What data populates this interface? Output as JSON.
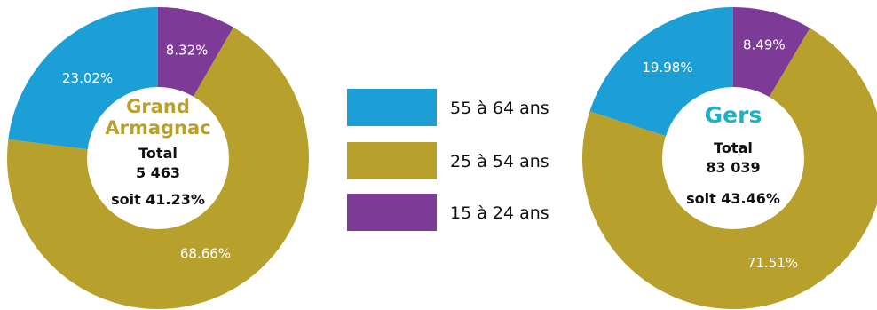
{
  "colors": {
    "age_55_64": "#1b9fd6",
    "age_25_54": "#b8a02c",
    "age_15_24": "#7e3a97",
    "title_grand_armagnac": "#b8a02c",
    "title_gers": "#1bb1c7"
  },
  "legend": [
    {
      "label": "55 à 64 ans",
      "color": "#1b9fd6"
    },
    {
      "label": "25 à 54 ans",
      "color": "#b8a02c"
    },
    {
      "label": "15 à 24 ans",
      "color": "#7e3a97"
    }
  ],
  "chart_data": [
    {
      "type": "pie",
      "title_lines": [
        "Grand",
        "Armagnac"
      ],
      "center": {
        "total_label": "Total",
        "total_value": "5 463",
        "share": "soit 41.23%"
      },
      "slices": [
        {
          "name": "15 à 24 ans",
          "value": 8.32,
          "label": "8.32%"
        },
        {
          "name": "25 à 54 ans",
          "value": 68.66,
          "label": "68.66%"
        },
        {
          "name": "55 à 64 ans",
          "value": 23.02,
          "label": "23.02%"
        }
      ]
    },
    {
      "type": "pie",
      "title_lines": [
        "Gers"
      ],
      "center": {
        "total_label": "Total",
        "total_value": "83 039",
        "share": "soit 43.46%"
      },
      "slices": [
        {
          "name": "15 à 24 ans",
          "value": 8.49,
          "label": "8.49%"
        },
        {
          "name": "25 à 54 ans",
          "value": 71.51,
          "label": "71.51%"
        },
        {
          "name": "55 à 64 ans",
          "value": 19.98,
          "label": "19.98%"
        }
      ]
    }
  ]
}
